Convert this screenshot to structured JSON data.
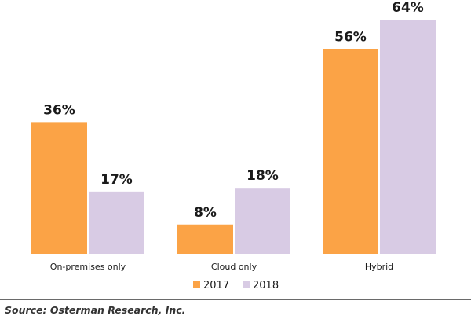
{
  "chart_data": {
    "type": "bar",
    "categories": [
      "On-premises only",
      "Cloud only",
      "Hybrid"
    ],
    "series": [
      {
        "name": "2017",
        "values": [
          36,
          8,
          56
        ],
        "labels": [
          "36%",
          "8%",
          "56%"
        ],
        "color": "#FBA346"
      },
      {
        "name": "2018",
        "values": [
          17,
          18,
          64
        ],
        "labels": [
          "17%",
          "18%",
          "64%"
        ],
        "color": "#D8CBE4"
      }
    ],
    "ylim": [
      0,
      64
    ],
    "legend_position": "bottom-center",
    "grid": false
  },
  "source": "Source: Osterman Research, Inc."
}
